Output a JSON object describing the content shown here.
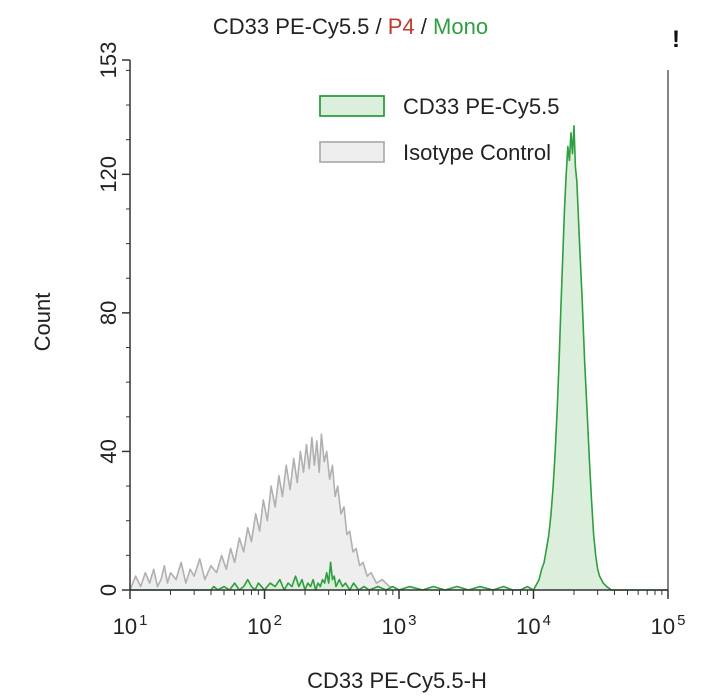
{
  "chart_data": {
    "type": "area",
    "title": {
      "parts": [
        {
          "text": "CD33 PE-Cy5.5",
          "color": "#222222"
        },
        {
          "text": " / ",
          "color": "#222222"
        },
        {
          "text": "P4",
          "color": "#c0392b"
        },
        {
          "text": " / ",
          "color": "#222222"
        },
        {
          "text": "Mono",
          "color": "#2e9e3e"
        }
      ]
    },
    "marker_text": "!",
    "xlabel": "CD33 PE-Cy5.5-H",
    "ylabel": "Count",
    "x_scale": "log",
    "xlim": [
      10,
      100000
    ],
    "ylim": [
      0,
      153
    ],
    "x_ticks": [
      {
        "value": 10,
        "base": "10",
        "exp": "1"
      },
      {
        "value": 100,
        "base": "10",
        "exp": "2"
      },
      {
        "value": 1000,
        "base": "10",
        "exp": "3"
      },
      {
        "value": 10000,
        "base": "10",
        "exp": "4"
      },
      {
        "value": 100000,
        "base": "10",
        "exp": "5"
      }
    ],
    "y_ticks": [
      0,
      40,
      80,
      120,
      153
    ],
    "grid": false,
    "legend_position": "top-right",
    "series": [
      {
        "name": "Isotype Control",
        "stroke": "#b0b0b0",
        "fill": "#eeeeee",
        "points": [
          [
            10,
            0
          ],
          [
            11,
            4
          ],
          [
            12,
            1
          ],
          [
            13,
            5
          ],
          [
            14,
            2
          ],
          [
            15,
            6
          ],
          [
            16,
            1
          ],
          [
            17,
            3
          ],
          [
            18,
            7
          ],
          [
            19,
            2
          ],
          [
            20,
            5
          ],
          [
            22,
            3
          ],
          [
            24,
            8
          ],
          [
            26,
            2
          ],
          [
            28,
            6
          ],
          [
            30,
            4
          ],
          [
            33,
            9
          ],
          [
            36,
            3
          ],
          [
            40,
            7
          ],
          [
            44,
            5
          ],
          [
            48,
            10
          ],
          [
            52,
            6
          ],
          [
            56,
            12
          ],
          [
            60,
            8
          ],
          [
            65,
            15
          ],
          [
            70,
            11
          ],
          [
            75,
            18
          ],
          [
            80,
            14
          ],
          [
            86,
            22
          ],
          [
            92,
            17
          ],
          [
            98,
            26
          ],
          [
            105,
            20
          ],
          [
            112,
            30
          ],
          [
            120,
            24
          ],
          [
            128,
            33
          ],
          [
            136,
            27
          ],
          [
            145,
            36
          ],
          [
            155,
            29
          ],
          [
            165,
            38
          ],
          [
            175,
            31
          ],
          [
            185,
            40
          ],
          [
            195,
            34
          ],
          [
            205,
            42
          ],
          [
            215,
            35
          ],
          [
            225,
            44
          ],
          [
            235,
            36
          ],
          [
            245,
            43
          ],
          [
            255,
            34
          ],
          [
            265,
            45
          ],
          [
            278,
            37
          ],
          [
            290,
            40
          ],
          [
            305,
            32
          ],
          [
            320,
            36
          ],
          [
            335,
            27
          ],
          [
            350,
            30
          ],
          [
            370,
            22
          ],
          [
            390,
            24
          ],
          [
            410,
            16
          ],
          [
            430,
            17
          ],
          [
            455,
            11
          ],
          [
            480,
            12
          ],
          [
            510,
            7
          ],
          [
            540,
            8
          ],
          [
            580,
            4
          ],
          [
            620,
            5
          ],
          [
            680,
            2
          ],
          [
            750,
            3
          ],
          [
            850,
            1
          ],
          [
            1000,
            0
          ]
        ]
      },
      {
        "name": "CD33 PE-Cy5.5",
        "stroke": "#2e9e3e",
        "fill": "#dcefdd",
        "points": [
          [
            10,
            0
          ],
          [
            40,
            0
          ],
          [
            42,
            1
          ],
          [
            45,
            0
          ],
          [
            50,
            1
          ],
          [
            55,
            0
          ],
          [
            60,
            2
          ],
          [
            65,
            0
          ],
          [
            70,
            1
          ],
          [
            75,
            3
          ],
          [
            80,
            1
          ],
          [
            85,
            0
          ],
          [
            90,
            2
          ],
          [
            95,
            1
          ],
          [
            100,
            0
          ],
          [
            110,
            2
          ],
          [
            120,
            1
          ],
          [
            130,
            3
          ],
          [
            140,
            0
          ],
          [
            150,
            2
          ],
          [
            160,
            1
          ],
          [
            170,
            4
          ],
          [
            180,
            1
          ],
          [
            190,
            3
          ],
          [
            200,
            0
          ],
          [
            210,
            2
          ],
          [
            220,
            1
          ],
          [
            230,
            3
          ],
          [
            240,
            0
          ],
          [
            250,
            2
          ],
          [
            260,
            1
          ],
          [
            270,
            3
          ],
          [
            280,
            2
          ],
          [
            290,
            5
          ],
          [
            300,
            2
          ],
          [
            310,
            8
          ],
          [
            320,
            3
          ],
          [
            330,
            4
          ],
          [
            340,
            1
          ],
          [
            360,
            3
          ],
          [
            380,
            1
          ],
          [
            400,
            2
          ],
          [
            430,
            0
          ],
          [
            460,
            2
          ],
          [
            500,
            0
          ],
          [
            550,
            1
          ],
          [
            600,
            0
          ],
          [
            700,
            1
          ],
          [
            800,
            0
          ],
          [
            900,
            1
          ],
          [
            1000,
            0
          ],
          [
            1200,
            1
          ],
          [
            1500,
            0
          ],
          [
            1800,
            1
          ],
          [
            2200,
            0
          ],
          [
            2700,
            1
          ],
          [
            3300,
            0
          ],
          [
            4000,
            1
          ],
          [
            5000,
            0
          ],
          [
            6000,
            1
          ],
          [
            7000,
            0
          ],
          [
            8000,
            0
          ],
          [
            9000,
            1
          ],
          [
            10000,
            0
          ],
          [
            11000,
            3
          ],
          [
            11500,
            6
          ],
          [
            12000,
            8
          ],
          [
            12500,
            12
          ],
          [
            13000,
            16
          ],
          [
            13500,
            22
          ],
          [
            14000,
            30
          ],
          [
            14500,
            40
          ],
          [
            15000,
            52
          ],
          [
            15500,
            66
          ],
          [
            16000,
            82
          ],
          [
            16500,
            96
          ],
          [
            17000,
            110
          ],
          [
            17500,
            120
          ],
          [
            18000,
            128
          ],
          [
            18500,
            124
          ],
          [
            19000,
            132
          ],
          [
            19500,
            126
          ],
          [
            20000,
            134
          ],
          [
            20500,
            122
          ],
          [
            21000,
            118
          ],
          [
            22000,
            100
          ],
          [
            23000,
            84
          ],
          [
            24000,
            66
          ],
          [
            25000,
            52
          ],
          [
            26000,
            38
          ],
          [
            27000,
            26
          ],
          [
            28000,
            16
          ],
          [
            29000,
            10
          ],
          [
            30000,
            6
          ],
          [
            31000,
            4
          ],
          [
            33000,
            2
          ],
          [
            35000,
            1
          ],
          [
            38000,
            0
          ],
          [
            100000,
            0
          ]
        ]
      }
    ]
  }
}
